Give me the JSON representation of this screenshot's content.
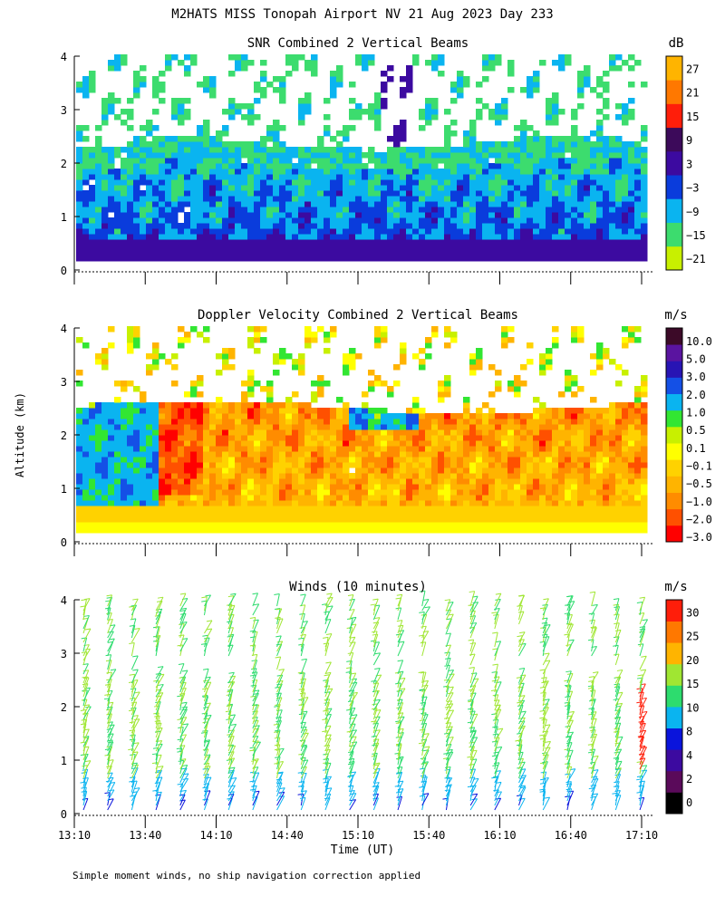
{
  "title": "M2HATS MISS Tonopah Airport NV  21 Aug 2023 Day 233",
  "ylabel": "Altitude (km)",
  "xlabel": "Time (UT)",
  "footnote": "Simple moment winds, no ship navigation correction applied",
  "x_ticks": [
    "13:10",
    "13:40",
    "14:10",
    "14:40",
    "15:10",
    "15:40",
    "16:10",
    "16:40",
    "17:10"
  ],
  "y_ticks": [
    "0",
    "1",
    "2",
    "3",
    "4"
  ],
  "chart_data": [
    {
      "type": "heatmap",
      "title": "SNR Combined 2 Vertical Beams",
      "xlim": [
        "13:10",
        "17:10"
      ],
      "ylim": [
        0,
        4
      ],
      "colorbar": {
        "unit": "dB",
        "labels": [
          "27",
          "21",
          "15",
          "9",
          "3",
          "−3",
          "−9",
          "−15",
          "−21"
        ],
        "colors": [
          "#c8f000",
          "#3cdc6e",
          "#0ab4f0",
          "#0a3cdc",
          "#3c0aa0",
          "#3c0a5a",
          "#ff1e0a",
          "#ff7800",
          "#ffb400"
        ]
      },
      "grid": false
    },
    {
      "type": "heatmap",
      "title": "Doppler Velocity Combined 2 Vertical Beams",
      "xlim": [
        "13:10",
        "17:10"
      ],
      "ylim": [
        0,
        4
      ],
      "colorbar": {
        "unit": "m/s",
        "labels": [
          "10.0",
          "5.0",
          "3.0",
          "2.0",
          "1.0",
          "0.5",
          "0.1",
          "−0.1",
          "−0.5",
          "−1.0",
          "−2.0",
          "−3.0"
        ],
        "colors": [
          "#ff0000",
          "#ff5000",
          "#ff8c00",
          "#ffb400",
          "#ffd200",
          "#ffff00",
          "#c8f000",
          "#32e632",
          "#0ab4f0",
          "#1450e6",
          "#2814b4",
          "#5a14a0",
          "#3c0a28"
        ]
      },
      "grid": false
    },
    {
      "type": "scatter",
      "title": "Winds (10 minutes)",
      "xlim": [
        "13:10",
        "17:10"
      ],
      "ylim": [
        0,
        4
      ],
      "colorbar": {
        "unit": "m/s",
        "labels": [
          "30",
          "25",
          "20",
          "15",
          "10",
          "8",
          "4",
          "2",
          "0"
        ],
        "colors": [
          "#000000",
          "#5a0a5a",
          "#3c0aa0",
          "#0a14dc",
          "#0ab4f0",
          "#2ddc6e",
          "#a0e632",
          "#ffb400",
          "#ff7800",
          "#ff1e0a"
        ]
      },
      "grid": false
    }
  ]
}
